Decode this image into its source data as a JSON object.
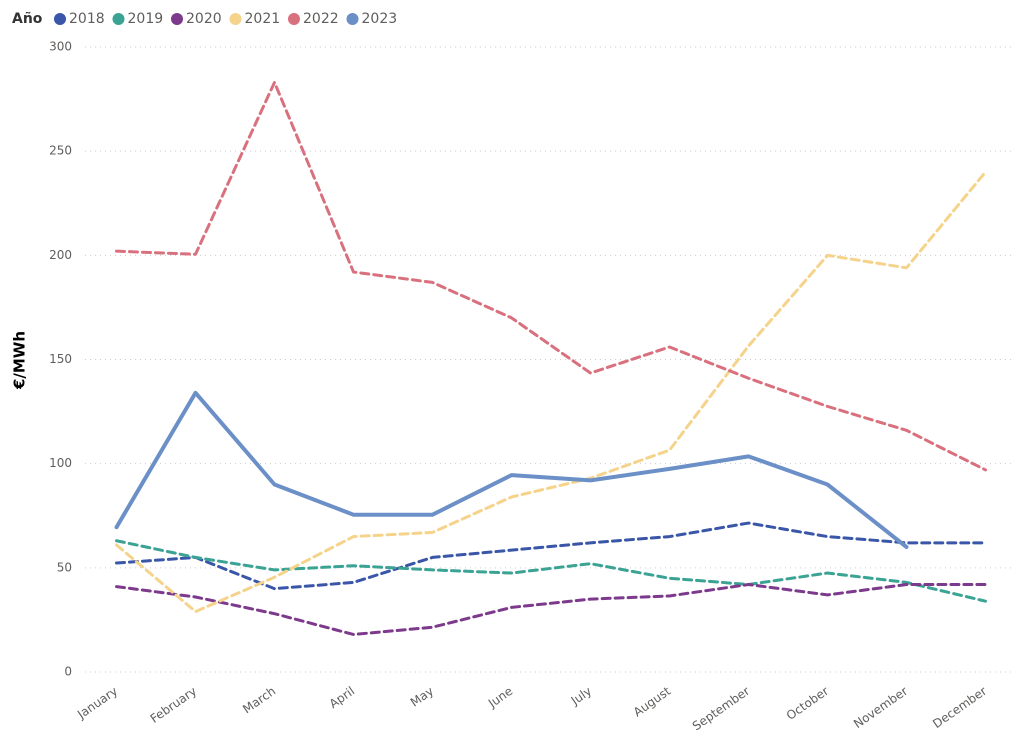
{
  "chart_data": {
    "type": "line",
    "legend_title": "Año",
    "y_label": "€/MWh",
    "categories": [
      "January",
      "February",
      "March",
      "April",
      "May",
      "June",
      "July",
      "August",
      "September",
      "October",
      "November",
      "December"
    ],
    "ylim": [
      0,
      300
    ],
    "yticks": [
      0,
      50,
      100,
      150,
      200,
      250,
      300
    ],
    "grid": true,
    "legend": "top-left",
    "series": [
      {
        "name": "2018",
        "color": "#3a56a8",
        "dashed": true,
        "values": [
          52.3,
          55,
          40,
          43,
          55,
          58.5,
          62,
          65,
          71.5,
          65,
          62,
          62
        ]
      },
      {
        "name": "2019",
        "color": "#3aa394",
        "dashed": true,
        "values": [
          63,
          55,
          49,
          51,
          49,
          47.5,
          52,
          45,
          42,
          47.5,
          43,
          34
        ]
      },
      {
        "name": "2020",
        "color": "#7d3a8c",
        "dashed": true,
        "values": [
          41,
          36,
          28,
          18,
          21.5,
          31,
          35,
          36.5,
          42,
          37,
          42,
          42
        ]
      },
      {
        "name": "2021",
        "color": "#f5d38a",
        "dashed": true,
        "values": [
          61,
          29,
          45.5,
          65,
          67,
          84,
          93,
          106.5,
          156.5,
          200,
          194,
          240
        ]
      },
      {
        "name": "2022",
        "color": "#d9707e",
        "dashed": true,
        "values": [
          202,
          200.5,
          283,
          192,
          187,
          170,
          143.5,
          156,
          141,
          127.5,
          116,
          97
        ]
      },
      {
        "name": "2023",
        "color": "#6b8fc7",
        "dashed": false,
        "values": [
          69.5,
          134,
          90,
          75.5,
          75.5,
          94.5,
          92,
          97.5,
          103.5,
          90,
          60,
          null
        ]
      }
    ]
  }
}
